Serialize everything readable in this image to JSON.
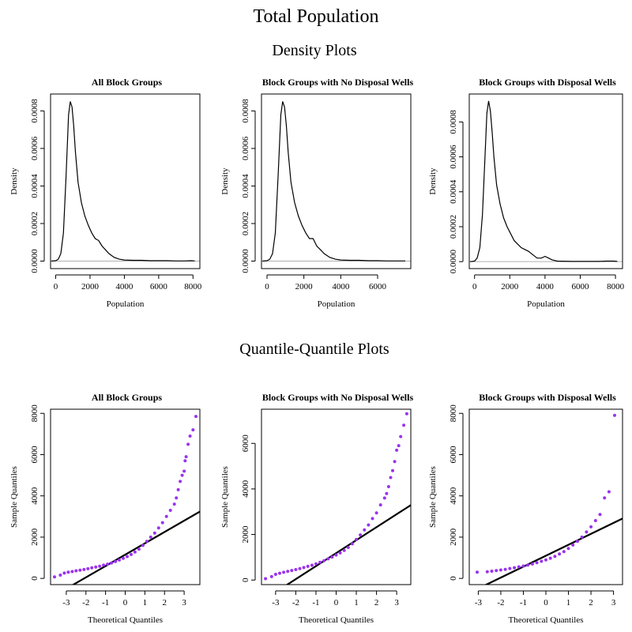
{
  "title": "Total Population",
  "density_heading": "Density Plots",
  "qq_heading": "Quantile-Quantile Plots",
  "colors": {
    "points": "#9933ee",
    "line": "#000000",
    "baseline": "#b0b0b0",
    "frame": "#000000"
  },
  "chart_data": [
    {
      "type": "line",
      "title": "All Block Groups",
      "xlabel": "Population",
      "ylabel": "Density",
      "xlim": [
        -300,
        8400
      ],
      "ylim": [
        -4e-05,
        0.00089
      ],
      "xticks": [
        0,
        2000,
        4000,
        6000,
        8000
      ],
      "yticks": [
        0.0,
        0.0002,
        0.0004,
        0.0006,
        0.0008
      ],
      "xtick_labels": [
        "0",
        "2000",
        "4000",
        "6000",
        "8000"
      ],
      "ytick_labels": [
        "0.0000",
        "0.0002",
        "0.0004",
        "0.0006",
        "0.0008"
      ],
      "grid": false,
      "x": [
        -250,
        0,
        150,
        300,
        450,
        600,
        750,
        850,
        950,
        1050,
        1150,
        1300,
        1500,
        1700,
        1900,
        2100,
        2300,
        2500,
        2700,
        2900,
        3100,
        3400,
        3700,
        4000,
        4500,
        5000,
        5500,
        6000,
        6500,
        7000,
        7500,
        7900,
        8100
      ],
      "y": [
        0,
        2e-06,
        1e-05,
        4e-05,
        0.00015,
        0.00045,
        0.00078,
        0.00085,
        0.00082,
        0.00072,
        0.00058,
        0.00042,
        0.00031,
        0.00024,
        0.00019,
        0.00015,
        0.00012,
        0.00011,
        8e-05,
        6e-05,
        4e-05,
        2e-05,
        1e-05,
        6e-06,
        4e-06,
        4e-06,
        2e-06,
        2e-06,
        2e-06,
        1e-06,
        1e-06,
        2e-06,
        1e-06
      ]
    },
    {
      "type": "line",
      "title": "Block Groups with No Disposal Wells",
      "xlabel": "Population",
      "ylabel": "Density",
      "xlim": [
        -300,
        7800
      ],
      "ylim": [
        -4e-05,
        0.00089
      ],
      "xticks": [
        0,
        2000,
        4000,
        6000
      ],
      "yticks": [
        0.0,
        0.0002,
        0.0004,
        0.0006,
        0.0008
      ],
      "xtick_labels": [
        "0",
        "2000",
        "4000",
        "6000"
      ],
      "ytick_labels": [
        "0.0000",
        "0.0002",
        "0.0004",
        "0.0006",
        "0.0008"
      ],
      "grid": false,
      "x": [
        -250,
        0,
        150,
        300,
        450,
        600,
        750,
        850,
        950,
        1050,
        1150,
        1300,
        1500,
        1700,
        1900,
        2100,
        2300,
        2500,
        2700,
        2900,
        3100,
        3400,
        3700,
        4000,
        4500,
        5000,
        5500,
        6000,
        6500,
        7000,
        7500
      ],
      "y": [
        0,
        2e-06,
        1e-05,
        4e-05,
        0.00015,
        0.00045,
        0.00078,
        0.00085,
        0.00082,
        0.00072,
        0.00058,
        0.00042,
        0.00031,
        0.00024,
        0.00019,
        0.00015,
        0.00012,
        0.00012,
        8e-05,
        6e-05,
        4e-05,
        2e-05,
        1e-05,
        6e-06,
        4e-06,
        4e-06,
        2e-06,
        2e-06,
        1e-06,
        1e-06,
        1e-06
      ]
    },
    {
      "type": "line",
      "title": "Block Groups with Disposal Wells",
      "xlabel": "Population",
      "ylabel": "Density",
      "xlim": [
        -300,
        8400
      ],
      "ylim": [
        -4e-05,
        0.00096
      ],
      "xticks": [
        0,
        2000,
        4000,
        6000,
        8000
      ],
      "yticks": [
        0.0,
        0.0002,
        0.0004,
        0.0006,
        0.0008
      ],
      "xtick_labels": [
        "0",
        "2000",
        "4000",
        "6000",
        "8000"
      ],
      "ytick_labels": [
        "0.0000",
        "0.0002",
        "0.0004",
        "0.0006",
        "0.0008"
      ],
      "grid": false,
      "x": [
        -250,
        0,
        150,
        300,
        450,
        600,
        700,
        800,
        900,
        1000,
        1100,
        1250,
        1450,
        1650,
        1850,
        2050,
        2250,
        2450,
        2650,
        2850,
        3050,
        3300,
        3550,
        3800,
        4000,
        4200,
        4400,
        4700,
        5500,
        7000,
        7500,
        7900,
        8100
      ],
      "y": [
        0,
        3e-06,
        2e-05,
        8e-05,
        0.00027,
        0.00062,
        0.00085,
        0.00092,
        0.00086,
        0.00074,
        0.0006,
        0.00044,
        0.00033,
        0.00025,
        0.0002,
        0.00016,
        0.00012,
        0.0001,
        8e-05,
        7e-05,
        6e-05,
        4e-05,
        2e-05,
        2e-05,
        3e-05,
        2e-05,
        1e-05,
        3e-06,
        1e-06,
        1e-06,
        3e-06,
        3e-06,
        1e-06
      ]
    },
    {
      "type": "scatter",
      "title": "All Block Groups",
      "xlabel": "Theoretical Quantiles",
      "ylabel": "Sample Quantiles",
      "xlim": [
        -3.8,
        3.8
      ],
      "ylim": [
        -300,
        8200
      ],
      "xticks": [
        -3,
        -2,
        -1,
        0,
        1,
        2,
        3
      ],
      "yticks": [
        0,
        2000,
        4000,
        6000,
        8000
      ],
      "xtick_labels": [
        "-3",
        "-2",
        "-1",
        "0",
        "1",
        "2",
        "3"
      ],
      "ytick_labels": [
        "0",
        "2000",
        "4000",
        "6000",
        "8000"
      ],
      "grid": false,
      "reference_line": {
        "intercept": 1150,
        "slope": 550
      },
      "x": [
        -3.6,
        -3.3,
        -3.1,
        -2.9,
        -2.7,
        -2.5,
        -2.3,
        -2.1,
        -1.9,
        -1.7,
        -1.5,
        -1.3,
        -1.1,
        -0.9,
        -0.7,
        -0.5,
        -0.3,
        -0.1,
        0.1,
        0.3,
        0.5,
        0.7,
        0.9,
        1.1,
        1.3,
        1.5,
        1.7,
        1.9,
        2.1,
        2.3,
        2.5,
        2.6,
        2.7,
        2.8,
        2.9,
        3.0,
        3.05,
        3.1,
        3.2,
        3.3,
        3.45,
        3.6
      ],
      "y": [
        70,
        160,
        260,
        300,
        330,
        370,
        400,
        430,
        470,
        510,
        550,
        590,
        640,
        690,
        750,
        820,
        890,
        970,
        1060,
        1160,
        1280,
        1420,
        1600,
        1800,
        2000,
        2200,
        2450,
        2700,
        3000,
        3300,
        3600,
        3900,
        4300,
        4700,
        5000,
        5200,
        5700,
        5900,
        6500,
        6900,
        7200,
        7850
      ]
    },
    {
      "type": "scatter",
      "title": "Block Groups with No Disposal Wells",
      "xlabel": "Theoretical Quantiles",
      "ylabel": "Sample Quantiles",
      "xlim": [
        -3.7,
        3.7
      ],
      "ylim": [
        -200,
        7500
      ],
      "xticks": [
        -3,
        -2,
        -1,
        0,
        1,
        2,
        3
      ],
      "yticks": [
        0,
        2000,
        4000,
        6000
      ],
      "xtick_labels": [
        "-3",
        "-2",
        "-1",
        "0",
        "1",
        "2",
        "3"
      ],
      "ytick_labels": [
        "0",
        "2000",
        "4000",
        "6000"
      ],
      "grid": false,
      "reference_line": {
        "intercept": 1180,
        "slope": 570
      },
      "x": [
        -3.5,
        -3.2,
        -3.0,
        -2.8,
        -2.6,
        -2.4,
        -2.2,
        -2.0,
        -1.8,
        -1.6,
        -1.4,
        -1.2,
        -1.0,
        -0.8,
        -0.6,
        -0.4,
        -0.2,
        0.0,
        0.2,
        0.4,
        0.6,
        0.8,
        1.0,
        1.2,
        1.4,
        1.6,
        1.8,
        2.0,
        2.2,
        2.4,
        2.5,
        2.6,
        2.7,
        2.8,
        2.9,
        3.0,
        3.1,
        3.2,
        3.35,
        3.5
      ],
      "y": [
        60,
        150,
        250,
        300,
        340,
        380,
        420,
        460,
        500,
        550,
        600,
        650,
        710,
        780,
        850,
        930,
        1010,
        1100,
        1190,
        1300,
        1430,
        1590,
        1780,
        1980,
        2200,
        2420,
        2700,
        2950,
        3300,
        3600,
        3800,
        4100,
        4500,
        4800,
        5200,
        5700,
        5900,
        6300,
        6800,
        7300
      ]
    },
    {
      "type": "scatter",
      "title": "Block Groups with Disposal Wells",
      "xlabel": "Theoretical Quantiles",
      "ylabel": "Sample Quantiles",
      "xlim": [
        -3.4,
        3.4
      ],
      "ylim": [
        -300,
        8200
      ],
      "xticks": [
        -3,
        -2,
        -1,
        0,
        1,
        2,
        3
      ],
      "yticks": [
        0,
        2000,
        4000,
        6000,
        8000
      ],
      "xtick_labels": [
        "-3",
        "-2",
        "-1",
        "0",
        "1",
        "2",
        "3"
      ],
      "ytick_labels": [
        "0",
        "2000",
        "4000",
        "6000",
        "8000"
      ],
      "grid": false,
      "reference_line": {
        "intercept": 1100,
        "slope": 530
      },
      "x": [
        -3.05,
        -2.6,
        -2.4,
        -2.2,
        -2.0,
        -1.8,
        -1.6,
        -1.4,
        -1.2,
        -1.0,
        -0.8,
        -0.6,
        -0.4,
        -0.2,
        0.0,
        0.2,
        0.4,
        0.6,
        0.8,
        1.0,
        1.2,
        1.4,
        1.6,
        1.8,
        2.0,
        2.2,
        2.4,
        2.6,
        2.8,
        3.05
      ],
      "y": [
        300,
        320,
        350,
        380,
        410,
        440,
        480,
        520,
        560,
        600,
        650,
        700,
        760,
        830,
        900,
        980,
        1070,
        1180,
        1300,
        1450,
        1620,
        1800,
        2000,
        2250,
        2500,
        2800,
        3100,
        3900,
        4200,
        7900
      ]
    }
  ]
}
